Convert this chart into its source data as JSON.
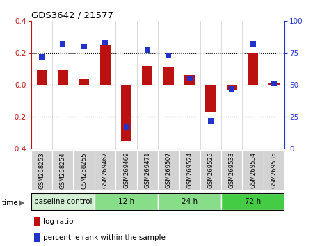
{
  "title": "GDS3642 / 21577",
  "samples": [
    "GSM268253",
    "GSM268254",
    "GSM268255",
    "GSM269467",
    "GSM269469",
    "GSM269471",
    "GSM269507",
    "GSM269524",
    "GSM269525",
    "GSM269533",
    "GSM269534",
    "GSM269535"
  ],
  "log_ratio": [
    0.09,
    0.09,
    0.04,
    0.25,
    -0.35,
    0.12,
    0.11,
    0.06,
    -0.17,
    -0.03,
    0.2,
    0.01
  ],
  "percentile": [
    72,
    82,
    80,
    83,
    17,
    77,
    73,
    55,
    22,
    47,
    82,
    51
  ],
  "bar_color": "#bb1111",
  "square_color": "#2233cc",
  "ylim_left": [
    -0.4,
    0.4
  ],
  "ylim_right": [
    0,
    100
  ],
  "yticks_left": [
    -0.4,
    -0.2,
    0.0,
    0.2,
    0.4
  ],
  "yticks_right": [
    0,
    25,
    50,
    75,
    100
  ],
  "dotted_lines": [
    -0.2,
    0.0,
    0.2
  ],
  "time_groups": [
    {
      "label": "baseline control",
      "start": 0,
      "end": 3,
      "color": "#d4f0d4"
    },
    {
      "label": "12 h",
      "start": 3,
      "end": 6,
      "color": "#88dd88"
    },
    {
      "label": "24 h",
      "start": 6,
      "end": 9,
      "color": "#88dd88"
    },
    {
      "label": "72 h",
      "start": 9,
      "end": 12,
      "color": "#44cc44"
    }
  ],
  "legend_log_ratio": "log ratio",
  "legend_percentile": "percentile rank within the sample",
  "time_label": "time",
  "grid_color": "#cccccc",
  "bar_width": 0.5,
  "square_size": 35
}
